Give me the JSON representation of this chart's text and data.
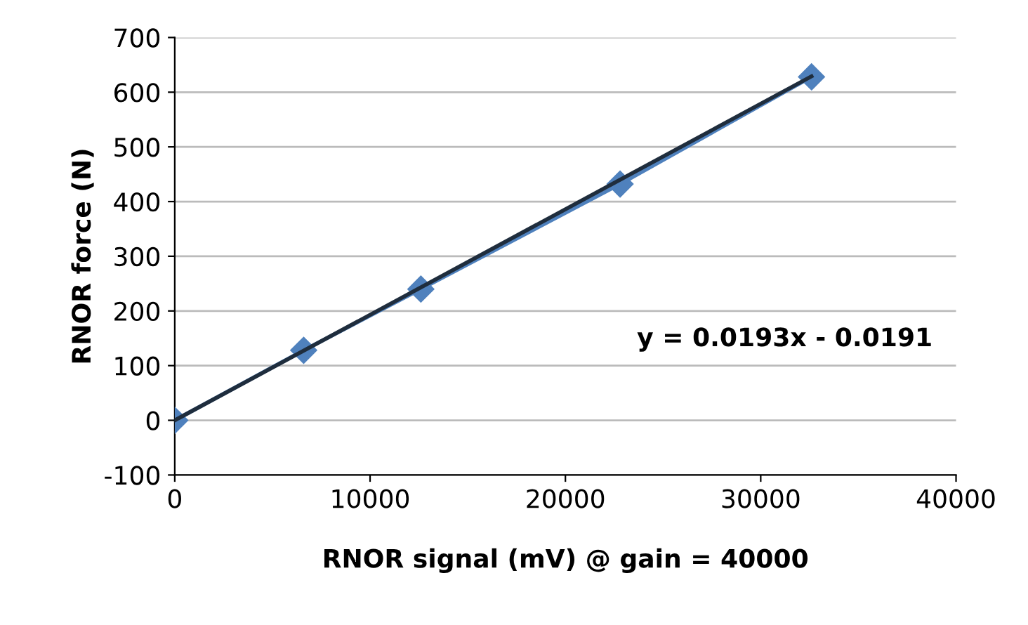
{
  "chart_data": {
    "type": "line",
    "xlabel": "RNOR signal (mV) @ gain = 40000",
    "ylabel": "RNOR force (N)",
    "series": [
      {
        "color": "#4f81bd",
        "marker": "diamond",
        "x": [
          0,
          6600,
          12600,
          22800,
          32600
        ],
        "values": [
          0,
          128,
          240,
          432,
          628
        ]
      },
      {
        "color": "#1f2d3d",
        "marker": "none",
        "x": [
          0,
          32600
        ],
        "values": [
          0,
          629
        ]
      }
    ],
    "xlim": [
      0,
      40000
    ],
    "xticks": [
      0,
      10000,
      20000,
      30000,
      40000
    ],
    "ylim": [
      -100,
      700
    ],
    "yticks": [
      -100,
      0,
      100,
      200,
      300,
      400,
      500,
      600,
      700
    ],
    "grid": "y",
    "annotations": [
      "y = 0.0193x - 0.0191"
    ]
  }
}
